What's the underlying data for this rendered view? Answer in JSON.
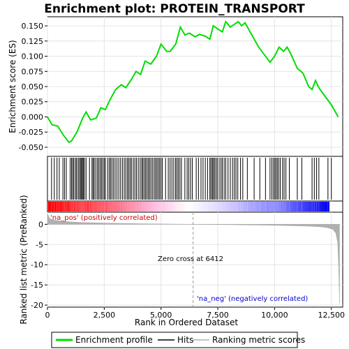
{
  "chart_data": {
    "type": "line",
    "title": "Enrichment plot: PROTEIN_TRANSPORT",
    "xlabel": "Rank in Ordered Dataset",
    "ylabel_top": "Enrichment score (ES)",
    "ylabel_bottom": "Ranked list metric (PreRanked)",
    "xlim": [
      0,
      13000
    ],
    "ylim_top": [
      -0.065,
      0.165
    ],
    "ylim_bottom": [
      -20.5,
      3.0
    ],
    "x_ticks": [
      0,
      2500,
      5000,
      7500,
      10000,
      12500
    ],
    "x_tick_labels": [
      "0",
      "2,500",
      "5,000",
      "7,500",
      "10,000",
      "12,500"
    ],
    "y_ticks_top": [
      -0.05,
      -0.025,
      0.0,
      0.025,
      0.05,
      0.075,
      0.1,
      0.125,
      0.15
    ],
    "y_tick_labels_top": [
      "-0.050",
      "-0.025",
      "0.000",
      "0.025",
      "0.050",
      "0.075",
      "0.100",
      "0.125",
      "0.150"
    ],
    "y_ticks_bottom": [
      0,
      -5,
      -10,
      -15,
      -20
    ],
    "y_tick_labels_bottom": [
      "0",
      "-5",
      "-10",
      "-15",
      "-20"
    ],
    "series": [
      {
        "name": "Enrichment profile",
        "color": "#00dd00",
        "x": [
          0,
          200,
          450,
          700,
          950,
          1050,
          1300,
          1550,
          1700,
          1900,
          2150,
          2350,
          2550,
          2750,
          3000,
          3250,
          3450,
          3700,
          3900,
          4100,
          4300,
          4550,
          4800,
          5000,
          5250,
          5400,
          5650,
          5850,
          6050,
          6250,
          6500,
          6700,
          6950,
          7150,
          7300,
          7500,
          7700,
          7850,
          8050,
          8250,
          8400,
          8550,
          8700,
          9000,
          9300,
          9500,
          9800,
          10000,
          10200,
          10400,
          10550,
          10700,
          11000,
          11250,
          11500,
          11650,
          11800,
          11950,
          12200,
          12500,
          12800
        ],
        "y": [
          0.0,
          -0.013,
          -0.015,
          -0.03,
          -0.042,
          -0.04,
          -0.025,
          -0.002,
          0.008,
          -0.005,
          -0.002,
          0.015,
          0.012,
          0.028,
          0.045,
          0.053,
          0.048,
          0.062,
          0.075,
          0.07,
          0.092,
          0.087,
          0.1,
          0.12,
          0.108,
          0.108,
          0.12,
          0.148,
          0.135,
          0.138,
          0.132,
          0.136,
          0.133,
          0.128,
          0.15,
          0.145,
          0.14,
          0.157,
          0.148,
          0.153,
          0.157,
          0.15,
          0.155,
          0.135,
          0.115,
          0.105,
          0.09,
          0.1,
          0.115,
          0.108,
          0.115,
          0.105,
          0.08,
          0.072,
          0.05,
          0.045,
          0.06,
          0.048,
          0.035,
          0.02,
          0.0
        ]
      }
    ],
    "hits_x": [
      180,
      300,
      420,
      520,
      680,
      750,
      830,
      1000,
      1060,
      1110,
      1160,
      1230,
      1280,
      1350,
      1400,
      1460,
      1500,
      1540,
      1580,
      1630,
      1700,
      1850,
      1960,
      2010,
      2060,
      2130,
      2200,
      2260,
      2320,
      2380,
      2440,
      2500,
      2550,
      2650,
      2720,
      2780,
      2840,
      2910,
      2980,
      3060,
      3140,
      3220,
      3300,
      3380,
      3450,
      3520,
      3580,
      3640,
      3700,
      3780,
      3850,
      3920,
      4000,
      4080,
      4150,
      4200,
      4260,
      4320,
      4380,
      4440,
      4500,
      4560,
      4630,
      4700,
      4760,
      4820,
      4880,
      4940,
      5000,
      5060,
      5200,
      5320,
      5400,
      5480,
      5560,
      5640,
      5700,
      5760,
      5830,
      5900,
      6050,
      6150,
      6220,
      6300,
      6380,
      6550,
      6650,
      6760,
      6850,
      6950,
      7050,
      7150,
      7200,
      7260,
      7300,
      7360,
      7420,
      7480,
      7560,
      7640,
      7700,
      7780,
      7850,
      7950,
      8050,
      8150,
      8230,
      8300,
      8380,
      8500,
      8600,
      8800,
      9100,
      9350,
      9600,
      9800,
      9880,
      9950,
      10010,
      10060,
      10120,
      10180,
      10250,
      10350,
      10420,
      10500,
      10650,
      11000,
      11200,
      11650,
      11750,
      11850,
      11950,
      12350,
      12500
    ],
    "metric_profile": {
      "x": [
        0,
        100,
        300,
        600,
        1000,
        1500,
        2500,
        4000,
        6412,
        8000,
        9500,
        10500,
        11500,
        12000,
        12300,
        12550,
        12700,
        12780,
        12820,
        12860
      ],
      "y": [
        2.6,
        1.4,
        1.0,
        0.8,
        0.6,
        0.45,
        0.3,
        0.15,
        0.0,
        -0.1,
        -0.2,
        -0.3,
        -0.45,
        -0.6,
        -0.8,
        -1.2,
        -2.2,
        -4.5,
        -10.0,
        -19.5
      ]
    },
    "zero_cross_text": "Zero cross at 6412",
    "zero_cross_x": 6412,
    "pos_label": "'na_pos' (positively correlated)",
    "neg_label": "'na_neg' (negatively correlated)",
    "legend": [
      "Enrichment profile",
      "Hits",
      "Ranking metric scores"
    ],
    "colors": {
      "profile": "#00dd00",
      "hits": "#000000",
      "metric": "#b0b0b0",
      "pos_label": "#cc0000",
      "neg_label": "#0000cc",
      "bar_start": "#ff0000",
      "bar_mid": "#ffffff",
      "bar_end": "#0000ff"
    }
  }
}
